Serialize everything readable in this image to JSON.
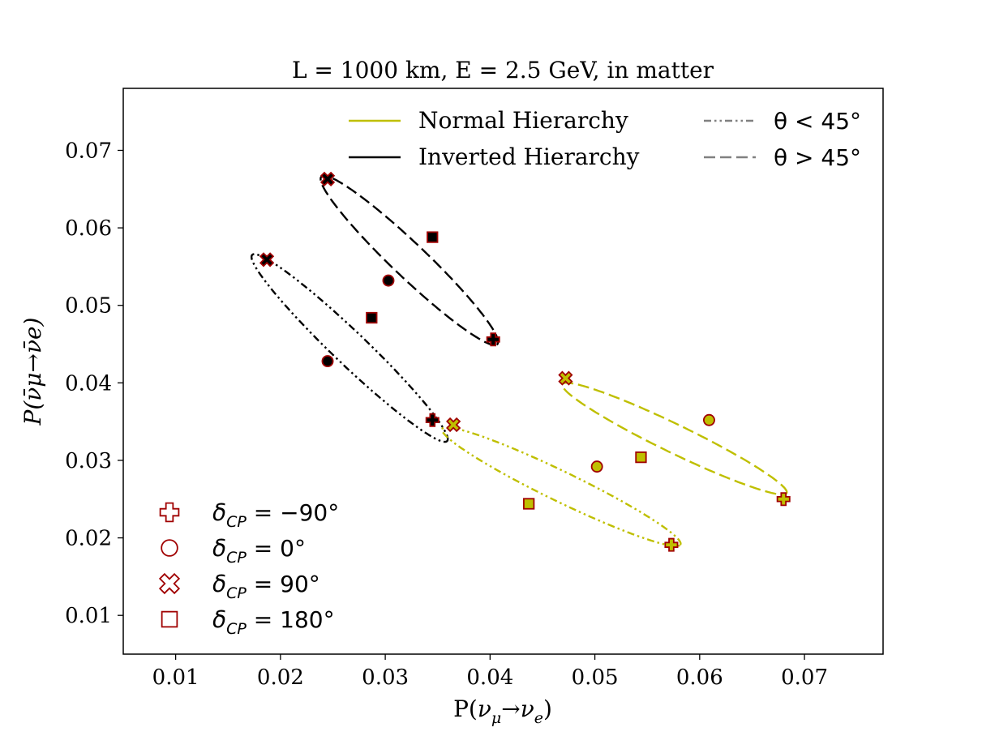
{
  "chart_data": {
    "type": "line",
    "title": "L = 1000 km, E = 2.5 GeV, in matter",
    "xlabel": {
      "base": "P(",
      "sub1": "μ",
      "mid": "→",
      "sub2": "e",
      "end": ")",
      "nu": "ν"
    },
    "ylabel": {
      "text": "P(ν̄μ→ν̄e)"
    },
    "xlim": [
      0.005,
      0.0775
    ],
    "ylim": [
      0.005,
      0.078
    ],
    "xticks": [
      0.01,
      0.02,
      0.03,
      0.04,
      0.05,
      0.06,
      0.07
    ],
    "yticks": [
      0.01,
      0.02,
      0.03,
      0.04,
      0.05,
      0.06,
      0.07
    ],
    "xtick_labels": [
      "0.01",
      "0.02",
      "0.03",
      "0.04",
      "0.05",
      "0.06",
      "0.07"
    ],
    "ytick_labels": [
      "0.01",
      "0.02",
      "0.03",
      "0.04",
      "0.05",
      "0.06",
      "0.07"
    ],
    "grid": false,
    "legend_hierarchy": {
      "placement": "top-center",
      "entries": [
        {
          "label": "Normal Hierarchy",
          "color": "#bfbf00"
        },
        {
          "label": "Inverted Hierarchy",
          "color": "#000000"
        }
      ]
    },
    "legend_theta": {
      "placement": "top-right",
      "entries": [
        {
          "label": "θ < 45°",
          "style": "dashdotdot",
          "color": "#808080"
        },
        {
          "label": "θ > 45°",
          "style": "dashed",
          "color": "#808080"
        }
      ]
    },
    "legend_delta": {
      "placement": "bottom-left",
      "entries": [
        {
          "marker": "plus",
          "label": "δCP = −90°",
          "value": "−90°"
        },
        {
          "marker": "circle",
          "label": "δCP = 0°",
          "value": "0°"
        },
        {
          "marker": "x",
          "label": "δCP = 90°",
          "value": "90°"
        },
        {
          "marker": "square",
          "label": "δCP = 180°",
          "value": "180°"
        }
      ]
    },
    "marker_edge_color": "#a00000",
    "series": [
      {
        "hierarchy": "Inverted",
        "theta": "< 45°",
        "color": "#000000",
        "style": "dashdotdot",
        "center": [
          0.0266,
          0.0445
        ],
        "semi_major": 0.0152,
        "semi_minor": 0.0018,
        "angle_deg": -52.5,
        "points": {
          "plus": [
            0.0345,
            0.0352
          ],
          "circle": [
            0.0245,
            0.0428
          ],
          "x": [
            0.0187,
            0.0559
          ],
          "square": [
            0.0287,
            0.0484
          ]
        }
      },
      {
        "hierarchy": "Inverted",
        "theta": "> 45°",
        "color": "#000000",
        "style": "dashed",
        "center": [
          0.0323,
          0.0558
        ],
        "semi_major": 0.0137,
        "semi_minor": 0.00185,
        "angle_deg": -52.5,
        "points": {
          "plus": [
            0.0403,
            0.0456
          ],
          "circle": [
            0.0303,
            0.0532
          ],
          "x": [
            0.0245,
            0.0663
          ],
          "square": [
            0.0345,
            0.0588
          ]
        }
      },
      {
        "hierarchy": "Normal",
        "theta": "< 45°",
        "color": "#bfbf00",
        "style": "dashdotdot",
        "center": [
          0.0468,
          0.0266
        ],
        "semi_major": 0.0136,
        "semi_minor": 0.0018,
        "angle_deg": -33.5,
        "points": {
          "plus": [
            0.0573,
            0.0191
          ],
          "circle": [
            0.0502,
            0.0292
          ],
          "x": [
            0.0365,
            0.0346
          ],
          "square": [
            0.0437,
            0.0244
          ]
        }
      },
      {
        "hierarchy": "Normal",
        "theta": "> 45°",
        "color": "#bfbf00",
        "style": "dashed",
        "center": [
          0.0576,
          0.0328
        ],
        "semi_major": 0.0128,
        "semi_minor": 0.0017,
        "angle_deg": -33.5,
        "points": {
          "plus": [
            0.068,
            0.025
          ],
          "circle": [
            0.0609,
            0.0352
          ],
          "x": [
            0.0472,
            0.0406
          ],
          "square": [
            0.0544,
            0.0304
          ]
        }
      }
    ]
  }
}
